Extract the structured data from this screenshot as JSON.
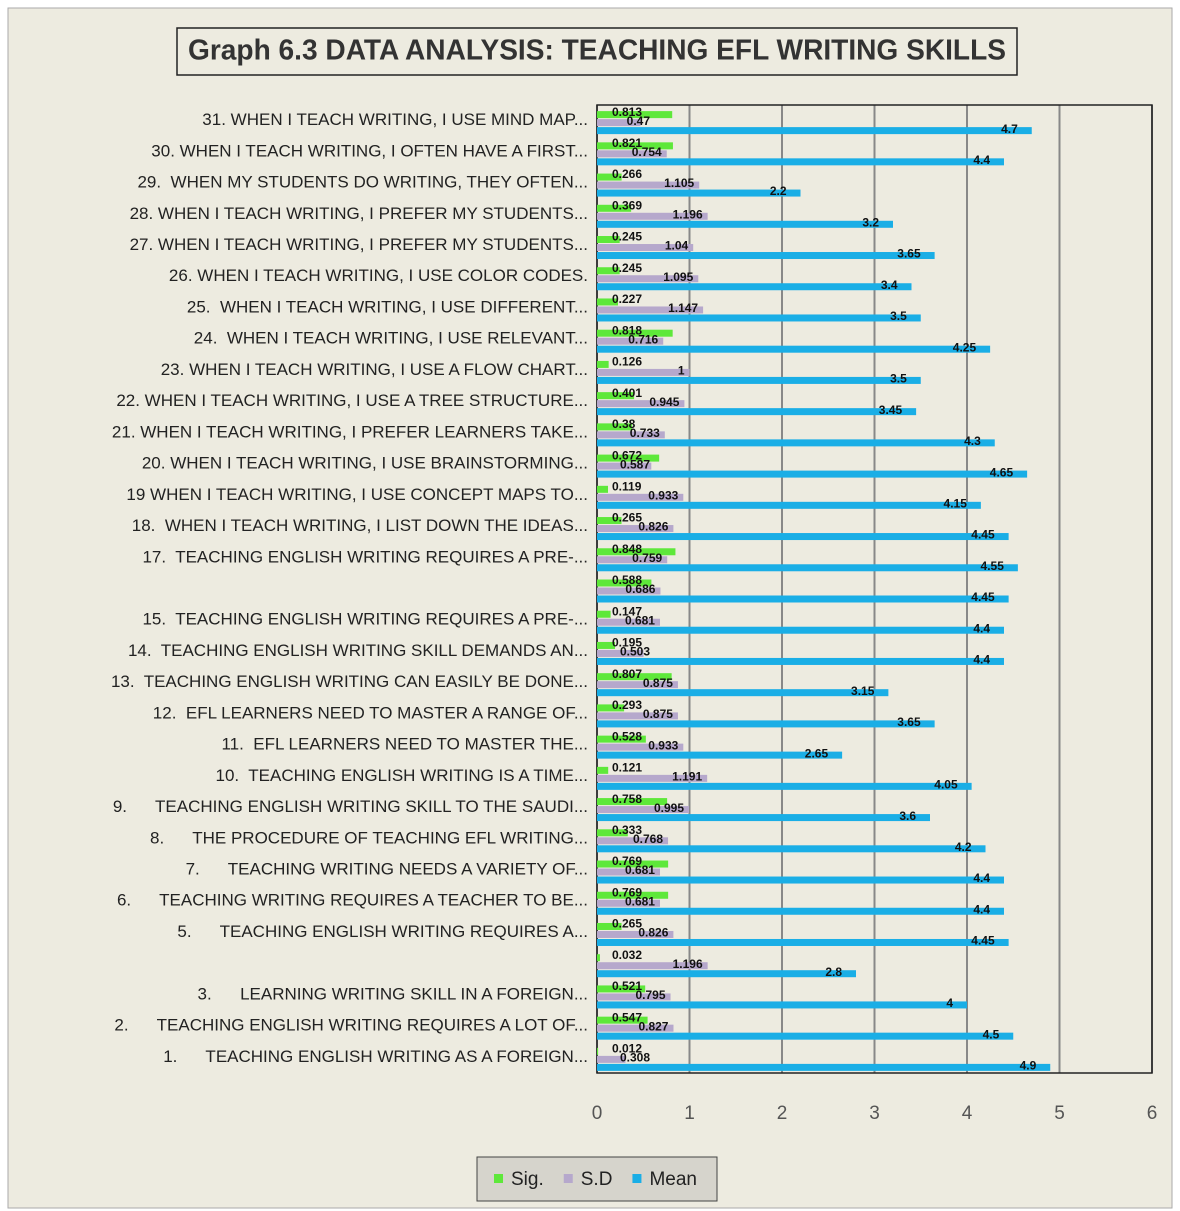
{
  "chart_data": {
    "type": "hbar",
    "title": "Graph 6.3 DATA ANALYSIS: TEACHING EFL WRITING SKILLS",
    "categories": [
      "31. WHEN I TEACH WRITING, I USE MIND MAP...",
      "30. WHEN I TEACH WRITING, I OFTEN HAVE A FIRST...",
      "29.  WHEN MY STUDENTS DO WRITING, THEY OFTEN...",
      "28. WHEN I TEACH WRITING, I PREFER MY STUDENTS...",
      "27. WHEN I TEACH WRITING, I PREFER MY STUDENTS...",
      "26. WHEN I TEACH WRITING, I USE COLOR CODES.",
      "25.  WHEN I TEACH WRITING, I USE DIFFERENT...",
      "24.  WHEN I TEACH WRITING, I USE RELEVANT...",
      "23. WHEN I TEACH WRITING, I USE A FLOW CHART...",
      "22. WHEN I TEACH WRITING, I USE A TREE STRUCTURE...",
      "21. WHEN I TEACH WRITING, I PREFER LEARNERS TAKE...",
      "20. WHEN I TEACH WRITING, I USE BRAINSTORMING...",
      "19 WHEN I TEACH WRITING, I USE CONCEPT MAPS TO...",
      "18.  WHEN I TEACH WRITING, I LIST DOWN THE IDEAS...",
      "17.  TEACHING ENGLISH WRITING REQUIRES A PRE-...",
      null,
      "15.  TEACHING ENGLISH WRITING REQUIRES A PRE-...",
      "14.  TEACHING ENGLISH WRITING SKILL DEMANDS AN...",
      "13.  TEACHING ENGLISH WRITING CAN EASILY BE DONE...",
      "12.  EFL LEARNERS NEED TO MASTER A RANGE OF...",
      "11.  EFL LEARNERS NEED TO MASTER THE...",
      "10.  TEACHING ENGLISH WRITING IS A TIME...",
      "9.      TEACHING ENGLISH WRITING SKILL TO THE SAUDI...",
      "8.      THE PROCEDURE OF TEACHING EFL WRITING...",
      "7.      TEACHING WRITING NEEDS A VARIETY OF...",
      "6.      TEACHING WRITING REQUIRES A TEACHER TO BE...",
      "5.      TEACHING ENGLISH WRITING REQUIRES A...",
      null,
      "3.      LEARNING WRITING SKILL IN A FOREIGN...",
      "2.      TEACHING ENGLISH WRITING REQUIRES A LOT OF...",
      "1.      TEACHING ENGLISH WRITING AS A FOREIGN..."
    ],
    "series": [
      {
        "name": "Sig.",
        "color": "#5ee83a",
        "values": [
          0.813,
          0.821,
          0.266,
          0.369,
          0.245,
          0.245,
          0.227,
          0.818,
          0.126,
          0.401,
          0.38,
          0.672,
          0.119,
          0.265,
          0.848,
          0.588,
          0.147,
          0.195,
          0.807,
          0.293,
          0.528,
          0.121,
          0.758,
          0.333,
          0.769,
          0.769,
          0.265,
          0.032,
          0.521,
          0.547,
          0.012
        ]
      },
      {
        "name": "S.D",
        "color": "#b6a8cc",
        "values": [
          0.47,
          0.754,
          1.105,
          1.196,
          1.04,
          1.095,
          1.147,
          0.716,
          1,
          0.945,
          0.733,
          0.587,
          0.933,
          0.826,
          0.759,
          0.686,
          0.681,
          0.503,
          0.875,
          0.875,
          0.933,
          1.191,
          0.995,
          0.768,
          0.681,
          0.681,
          0.826,
          1.196,
          0.795,
          0.827,
          0.308
        ]
      },
      {
        "name": "Mean",
        "color": "#1aaee6",
        "values": [
          4.7,
          4.4,
          2.2,
          3.2,
          3.65,
          3.4,
          3.5,
          4.25,
          3.5,
          3.45,
          4.3,
          4.65,
          4.15,
          4.45,
          4.55,
          4.45,
          4.4,
          4.4,
          3.15,
          3.65,
          2.65,
          4.05,
          3.6,
          4.2,
          4.4,
          4.4,
          4.45,
          2.8,
          4,
          4.5,
          4.9
        ]
      }
    ],
    "xlim": [
      0,
      6
    ],
    "xticks": [
      0,
      1,
      2,
      3,
      4,
      5,
      6
    ],
    "grid": true,
    "legend": "bottom"
  }
}
